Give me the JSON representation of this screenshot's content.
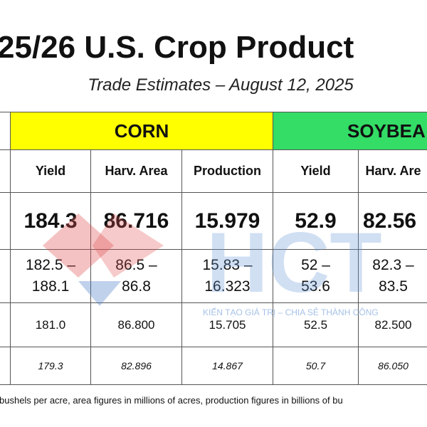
{
  "header": {
    "title": "25/26 U.S. Crop Product",
    "subtitle": "Trade Estimates – August 12, 2025"
  },
  "table": {
    "groups": [
      "CORN",
      "SOYBEA"
    ],
    "headers": [
      "Yield",
      "Harv. Area",
      "Production",
      "Yield",
      "Harv. Are"
    ],
    "rows": [
      [
        "184.3",
        "86.716",
        "15.979",
        "52.9",
        "82.56"
      ],
      [
        "182.5 – 188.1",
        "86.5 – 86.8",
        "15.83 – 16.323",
        "52 – 53.6",
        "82.3 – 83.5"
      ],
      [
        "181.0",
        "86.800",
        "15.705",
        "52.5",
        "82.500"
      ],
      [
        "179.3",
        "82.896",
        "14.867",
        "50.7",
        "86.050"
      ]
    ]
  },
  "watermark": {
    "logo": "HCT",
    "tagline": "KIẾN TẠO GIÁ TRỊ – CHIA SẺ THÀNH CÔNG"
  },
  "footnote": "bushels per acre, area figures in millions of acres, production figures in billions of bu"
}
